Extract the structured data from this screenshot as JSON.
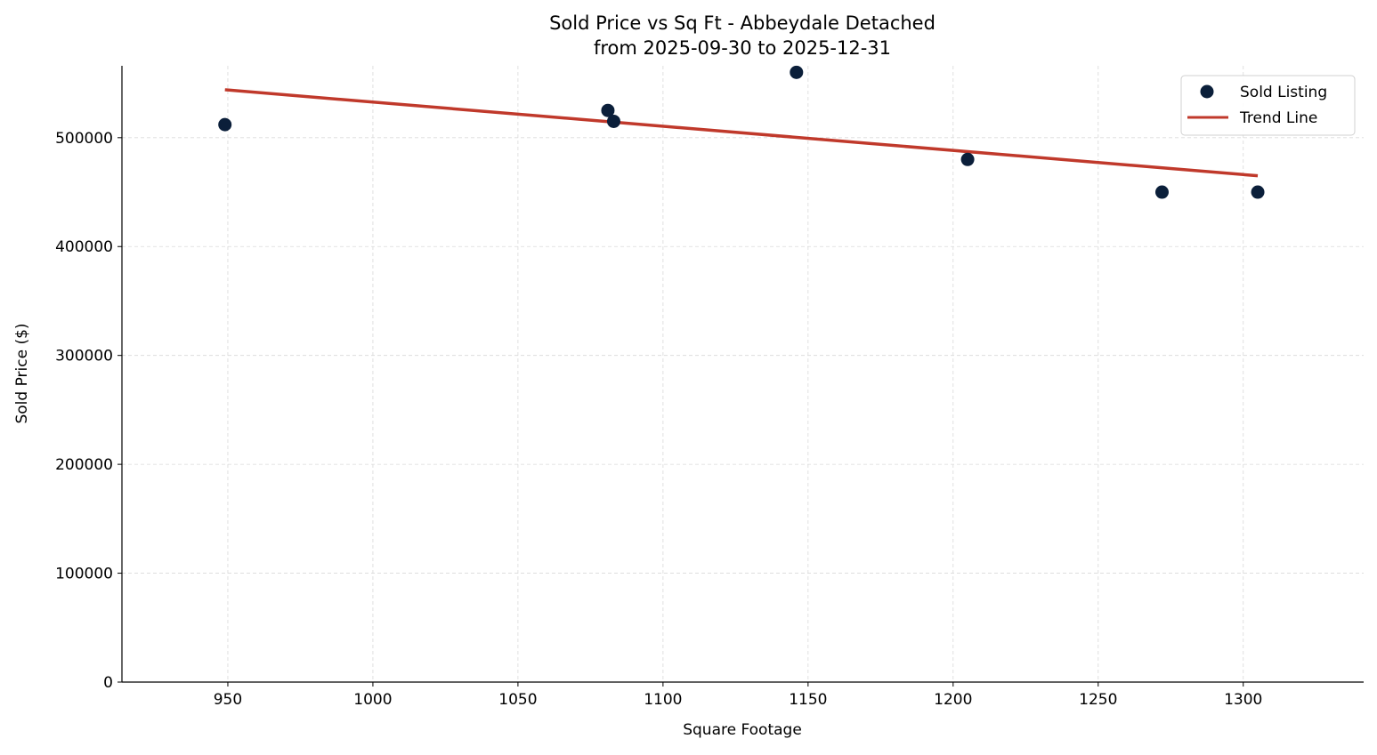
{
  "chart_data": {
    "type": "scatter",
    "title": "Sold Price vs Sq Ft - Abbeydale Detached",
    "subtitle": "from 2025-09-30 to 2025-12-31",
    "xlabel": "Square Footage",
    "ylabel": "Sold Price ($)",
    "xlim": [
      913.5,
      1341.5
    ],
    "ylim": [
      0,
      566000
    ],
    "xticks": [
      950,
      1000,
      1050,
      1100,
      1150,
      1200,
      1250,
      1300
    ],
    "yticks": [
      0,
      100000,
      200000,
      300000,
      400000,
      500000
    ],
    "grid": true,
    "legend_position": "top-right",
    "series": [
      {
        "name": "Sold Listing",
        "type": "scatter",
        "color": "#0b1f3a",
        "points": [
          {
            "x": 949,
            "y": 512000
          },
          {
            "x": 1081,
            "y": 525000
          },
          {
            "x": 1083,
            "y": 515000
          },
          {
            "x": 1146,
            "y": 560000
          },
          {
            "x": 1205,
            "y": 480000
          },
          {
            "x": 1272,
            "y": 450000
          },
          {
            "x": 1305,
            "y": 450000
          }
        ]
      },
      {
        "name": "Trend Line",
        "type": "line",
        "color": "#c0392b",
        "points": [
          {
            "x": 949,
            "y": 544000
          },
          {
            "x": 1305,
            "y": 465000
          }
        ]
      }
    ]
  }
}
